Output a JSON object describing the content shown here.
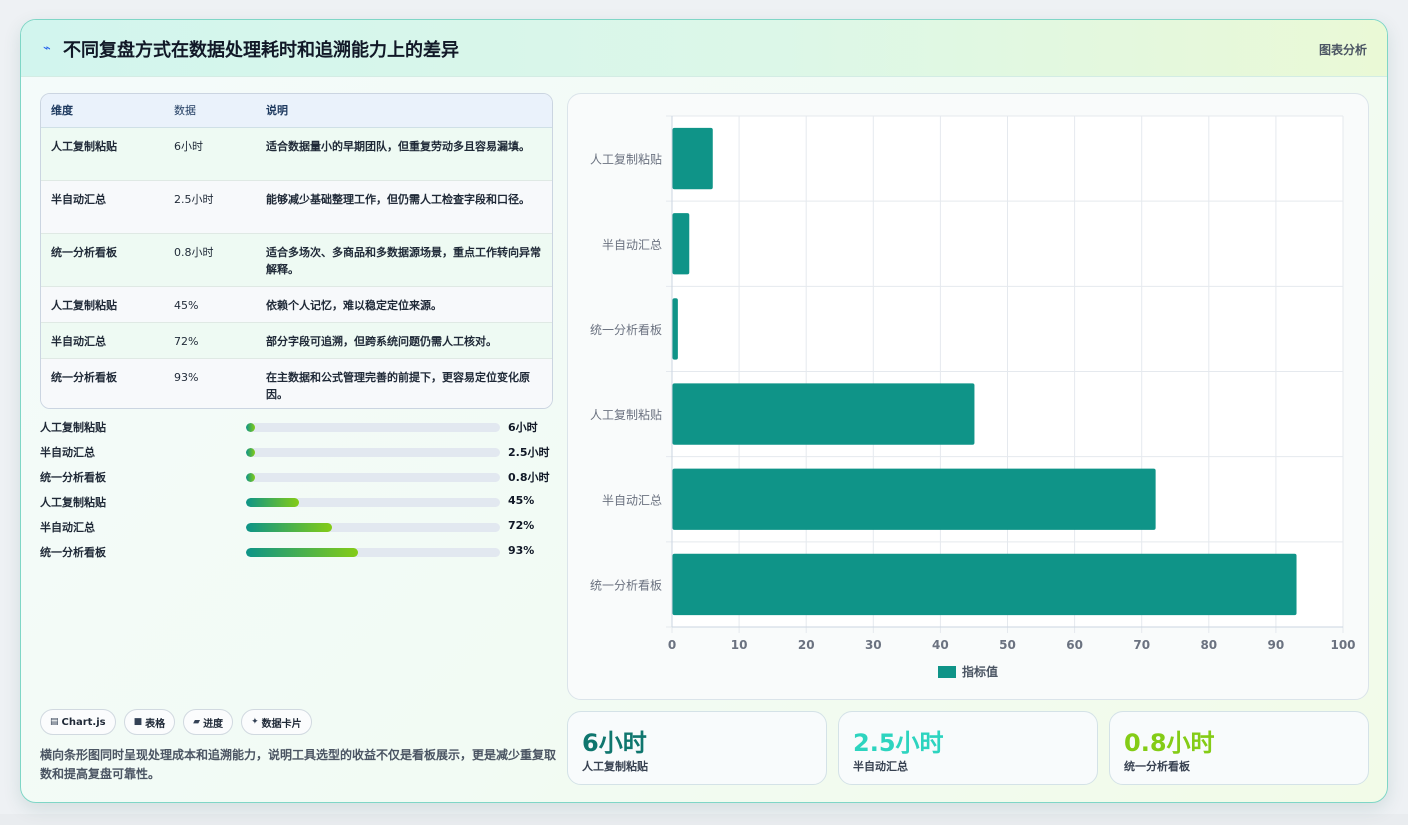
{
  "header": {
    "title": "不同复盘方式在数据处理耗时和追溯能力上的差异",
    "tag": "图表分析"
  },
  "table": {
    "headers": [
      "维度",
      "数据",
      "说明"
    ],
    "rows": [
      {
        "dim": "人工复制粘贴",
        "value": "6小时",
        "desc": "适合数据量小的早期团队，但重复劳动多且容易漏填。"
      },
      {
        "dim": "半自动汇总",
        "value": "2.5小时",
        "desc": "能够减少基础整理工作，但仍需人工检查字段和口径。"
      },
      {
        "dim": "统一分析看板",
        "value": "0.8小时",
        "desc": "适合多场次、多商品和多数据源场景，重点工作转向异常解释。"
      },
      {
        "dim": "人工复制粘贴",
        "value": "45%",
        "desc": "依赖个人记忆，难以稳定定位来源。"
      },
      {
        "dim": "半自动汇总",
        "value": "72%",
        "desc": "部分字段可追溯，但跨系统问题仍需人工核对。"
      },
      {
        "dim": "统一分析看板",
        "value": "93%",
        "desc": "在主数据和公式管理完善的前提下，更容易定位变化原因。"
      }
    ]
  },
  "progress": [
    {
      "label": "人工复制粘贴",
      "display": "6小时",
      "fraction": 0.036
    },
    {
      "label": "半自动汇总",
      "display": "2.5小时",
      "fraction": 0.036
    },
    {
      "label": "统一分析看板",
      "display": "0.8小时",
      "fraction": 0.036
    },
    {
      "label": "人工复制粘贴",
      "display": "45%",
      "fraction": 0.21
    },
    {
      "label": "半自动汇总",
      "display": "72%",
      "fraction": 0.34
    },
    {
      "label": "统一分析看板",
      "display": "93%",
      "fraction": 0.44
    }
  ],
  "chips": [
    {
      "icon": "chart-icon",
      "glyph": "▤",
      "label": "Chart.js"
    },
    {
      "icon": "table-icon",
      "glyph": "■",
      "label": "表格"
    },
    {
      "icon": "progress-icon",
      "glyph": "▰",
      "label": "进度"
    },
    {
      "icon": "sparkle-icon",
      "glyph": "✦",
      "label": "数据卡片"
    }
  ],
  "footnote": "横向条形图同时呈现处理成本和追溯能力，说明工具选型的收益不仅是看板展示，更是减少重复取数和提高复盘可靠性。",
  "kpis": [
    {
      "value": "6小时",
      "label": "人工复制粘贴",
      "color": "#0f766e"
    },
    {
      "value": "2.5小时",
      "label": "半自动汇总",
      "color": "#2dd4bf"
    },
    {
      "value": "0.8小时",
      "label": "统一分析看板",
      "color": "#84cc16"
    }
  ],
  "chart_data": {
    "type": "bar",
    "orientation": "horizontal",
    "categories": [
      "人工复制粘贴",
      "半自动汇总",
      "统一分析看板",
      "人工复制粘贴",
      "半自动汇总",
      "统一分析看板"
    ],
    "series": [
      {
        "name": "指标值",
        "values": [
          6,
          2.5,
          0.8,
          45,
          72,
          93
        ],
        "color": "#0f9488"
      }
    ],
    "xlim": [
      0,
      100
    ],
    "xticks": [
      0,
      10,
      20,
      30,
      40,
      50,
      60,
      70,
      80,
      90,
      100
    ],
    "grid": true,
    "legend": "bottom"
  }
}
